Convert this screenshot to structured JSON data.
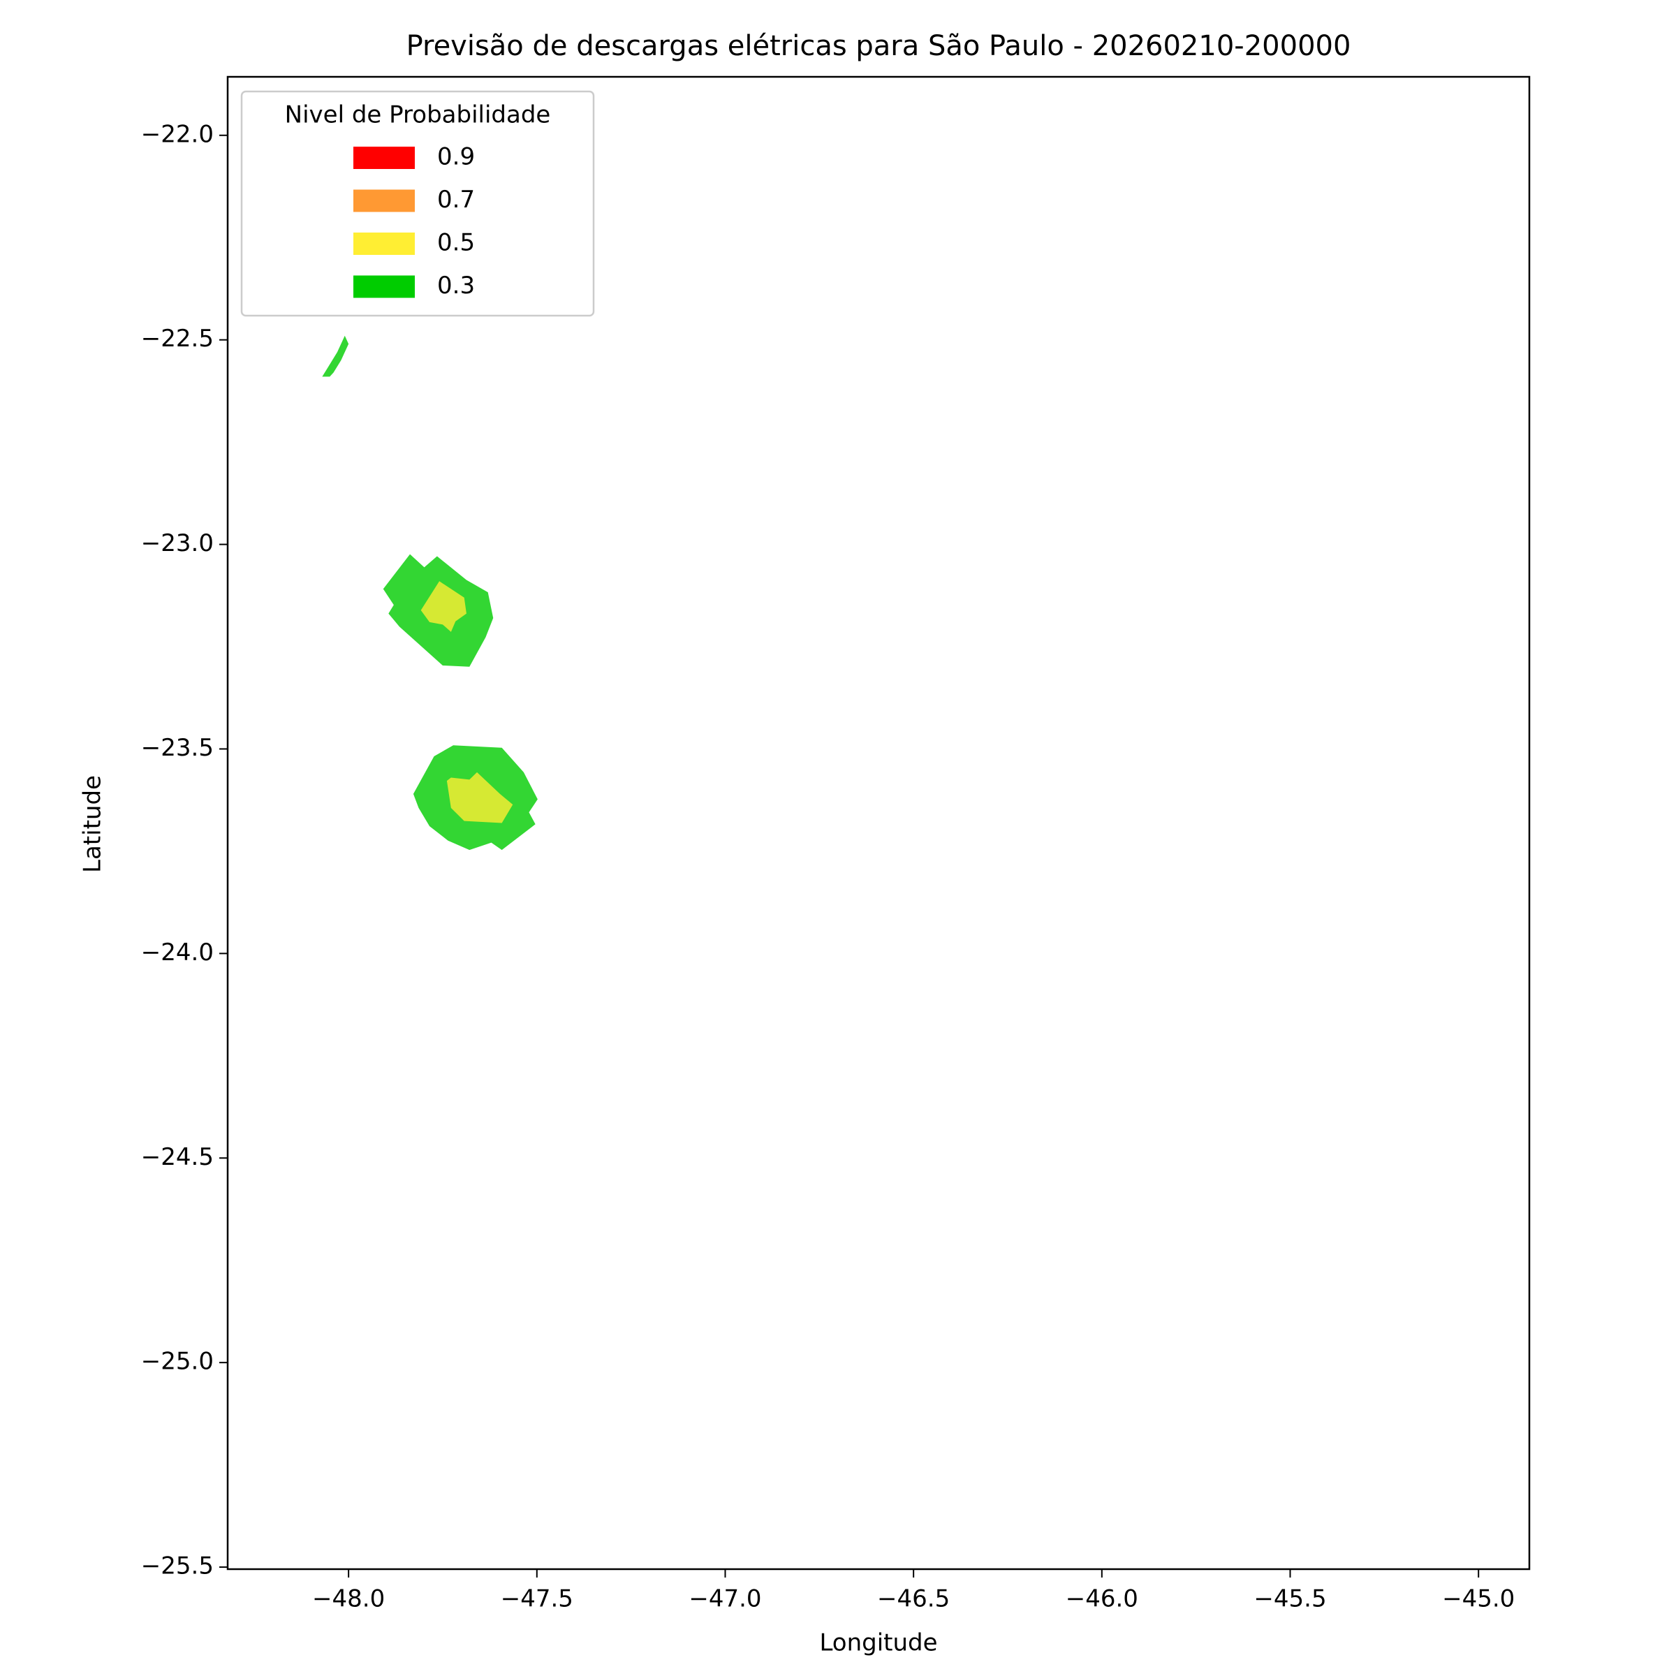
{
  "chart_data": {
    "type": "contour",
    "title": "Previsão de descargas elétricas para São Paulo - 20260210-200000",
    "x_label": "Longitude",
    "y_label": "Latitude",
    "xlim": [
      -48.321,
      -44.865
    ],
    "ylim": [
      -25.505,
      -21.857
    ],
    "xticks": [
      {
        "value": -48.0,
        "label": "−48.0"
      },
      {
        "value": -47.5,
        "label": "−47.5"
      },
      {
        "value": -47.0,
        "label": "−47.0"
      },
      {
        "value": -46.5,
        "label": "−46.5"
      },
      {
        "value": -46.0,
        "label": "−46.0"
      },
      {
        "value": -45.5,
        "label": "−45.5"
      },
      {
        "value": -45.0,
        "label": "−45.0"
      }
    ],
    "yticks": [
      {
        "value": -22.0,
        "label": "−22.0"
      },
      {
        "value": -22.5,
        "label": "−22.5"
      },
      {
        "value": -23.0,
        "label": "−23.0"
      },
      {
        "value": -23.5,
        "label": "−23.5"
      },
      {
        "value": -24.0,
        "label": "−24.0"
      },
      {
        "value": -24.5,
        "label": "−24.5"
      },
      {
        "value": -25.0,
        "label": "−25.0"
      },
      {
        "value": -25.5,
        "label": "−25.5"
      }
    ],
    "legend": {
      "title": "Nivel de Probabilidade",
      "position": "upper left",
      "items": [
        {
          "name": "0.9",
          "color": "#ff0000"
        },
        {
          "name": "0.7",
          "color": "#ff9933"
        },
        {
          "name": "0.5",
          "color": "#ffee33"
        },
        {
          "name": "0.3",
          "color": "#00cc00"
        }
      ]
    },
    "fill_opacity": 0.8,
    "regions": [
      {
        "color": "#00cc00",
        "lon": [
          -48.07,
          -48.05,
          -48.03,
          -48.01,
          -48.0,
          -48.02,
          -48.04,
          -48.05
        ],
        "lat": [
          -22.59,
          -22.56,
          -22.53,
          -22.49,
          -22.51,
          -22.55,
          -22.58,
          -22.59
        ]
      },
      {
        "color": "#00cc00",
        "lon": [
          -47.908,
          -47.837,
          -47.799,
          -47.765,
          -47.687,
          -47.63,
          -47.616,
          -47.636,
          -47.679,
          -47.75,
          -47.865,
          -47.894,
          -47.88
        ],
        "lat": [
          -23.109,
          -23.024,
          -23.056,
          -23.029,
          -23.087,
          -23.117,
          -23.18,
          -23.227,
          -23.299,
          -23.296,
          -23.201,
          -23.169,
          -23.148
        ]
      },
      {
        "color": "#ffee33",
        "lon": [
          -47.808,
          -47.759,
          -47.693,
          -47.687,
          -47.716,
          -47.728,
          -47.75,
          -47.785
        ],
        "lat": [
          -23.161,
          -23.09,
          -23.13,
          -23.169,
          -23.188,
          -23.214,
          -23.196,
          -23.19
        ]
      },
      {
        "color": "#00cc00",
        "lon": [
          -47.828,
          -47.773,
          -47.722,
          -47.593,
          -47.535,
          -47.498,
          -47.521,
          -47.504,
          -47.593,
          -47.621,
          -47.679,
          -47.736,
          -47.785,
          -47.814
        ],
        "lat": [
          -23.61,
          -23.518,
          -23.491,
          -23.497,
          -23.557,
          -23.623,
          -23.655,
          -23.684,
          -23.747,
          -23.729,
          -23.747,
          -23.724,
          -23.689,
          -23.644
        ]
      },
      {
        "color": "#ffee33",
        "lon": [
          -47.739,
          -47.728,
          -47.679,
          -47.659,
          -47.598,
          -47.564,
          -47.593,
          -47.693,
          -47.728
        ],
        "lat": [
          -23.578,
          -23.57,
          -23.575,
          -23.557,
          -23.61,
          -23.636,
          -23.681,
          -23.676,
          -23.644
        ]
      }
    ]
  }
}
